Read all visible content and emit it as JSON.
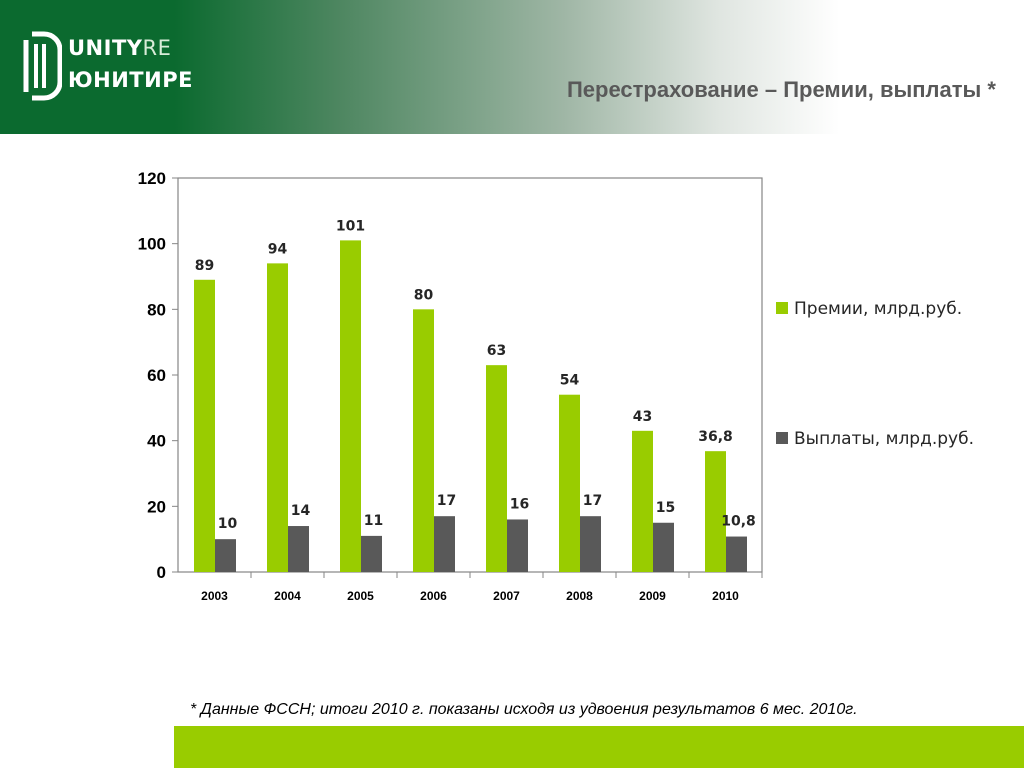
{
  "header": {
    "logo_top": "UNITY",
    "logo_top_suffix": "RE",
    "logo_bottom": "ЮНИТИ",
    "logo_bottom_suffix": "РЕ",
    "title": "Перестрахование – Премии, выплаты *"
  },
  "colors": {
    "header_green": "#0b6a2f",
    "premiums": "#99cc00",
    "payments": "#595959",
    "bottom_bar": "#99cc00"
  },
  "chart_data": {
    "type": "bar",
    "categories": [
      "2003",
      "2004",
      "2005",
      "2006",
      "2007",
      "2008",
      "2009",
      "2010"
    ],
    "series": [
      {
        "name": "Премии, млрд.руб.",
        "values": [
          89,
          94,
          101,
          80,
          63,
          54,
          43,
          36.8
        ],
        "labels": [
          "89",
          "94",
          "101",
          "80",
          "63",
          "54",
          "43",
          "36,8"
        ],
        "color": "#99cc00"
      },
      {
        "name": "Выплаты, млрд.руб.",
        "values": [
          10,
          14,
          11,
          17,
          16,
          17,
          15,
          10.8
        ],
        "labels": [
          "10",
          "14",
          "11",
          "17",
          "16",
          "17",
          "15",
          "10,8"
        ],
        "color": "#595959"
      }
    ],
    "ylim": [
      0,
      120
    ],
    "yticks": [
      0,
      20,
      40,
      60,
      80,
      100,
      120
    ],
    "legend": "right",
    "grid": false
  },
  "footnote": "* Данные ФССН; итоги 2010 г. показаны исходя из удвоения результатов 6 мес. 2010г."
}
